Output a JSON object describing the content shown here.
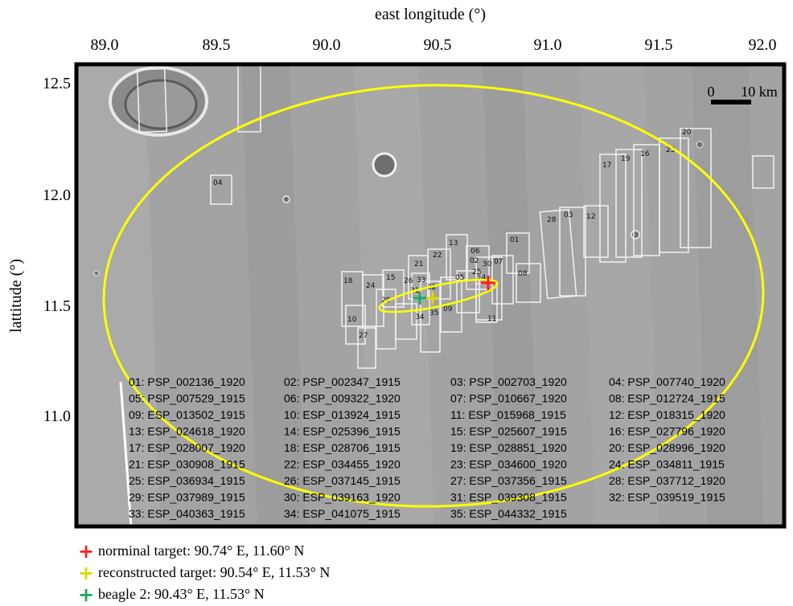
{
  "map": {
    "top_axis_label": "east longitude (°)",
    "left_axis_label": "lattitude (°)",
    "x_ticks": [
      "89.0",
      "89.5",
      "90.0",
      "90.5",
      "91.0",
      "91.5",
      "92.0"
    ],
    "y_ticks": [
      "12.5",
      "12.0",
      "11.5",
      "11.0"
    ],
    "scale_bar": {
      "zero_label": "0",
      "length_label": "10 km"
    },
    "footprint_labels": [
      "01",
      "02",
      "03",
      "04",
      "05",
      "06",
      "07",
      "08",
      "09",
      "10",
      "11",
      "12",
      "13",
      "14",
      "15",
      "16",
      "17",
      "18",
      "19",
      "20",
      "21",
      "22",
      "23",
      "24",
      "25",
      "26",
      "27",
      "28",
      "29",
      "30",
      "31",
      "32",
      "33",
      "34",
      "35"
    ],
    "image_list": [
      "01: PSP_002136_1920",
      "02: PSP_002347_1915",
      "03: PSP_002703_1920",
      "04: PSP_007740_1920",
      "05: PSP_007529_1915",
      "06: PSP_009322_1920",
      "07: PSP_010667_1920",
      "08: ESP_012724_1915",
      "09: ESP_013502_1915",
      "10: ESP_013924_1915",
      "11: ESP_015968_1915",
      "12: ESP_018315_1920",
      "13: ESP_024618_1920",
      "14: ESP_025396_1915",
      "15: ESP_025607_1915",
      "16: ESP_027796_1920",
      "17: ESP_028007_1920",
      "18: ESP_028706_1915",
      "19: ESP_028851_1920",
      "20: ESP_028996_1920",
      "21: ESP_030908_1915",
      "22: ESP_034455_1920",
      "23: ESP_034600_1920",
      "24: ESP_034811_1915",
      "25: ESP_036934_1915",
      "26: ESP_037145_1915",
      "27: ESP_037356_1915",
      "28: ESP_037712_1920",
      "29: ESP_037989_1915",
      "30: ESP_039163_1920",
      "31: ESP_039308_1915",
      "32: ESP_039519_1915",
      "33: ESP_040363_1915",
      "34: ESP_041075_1915",
      "35: ESP_044332_1915"
    ],
    "colors": {
      "ellipse": "#ffff00",
      "nominal": "#ff1a1a",
      "reconstructed": "#d9d900",
      "beagle": "#1aa860",
      "frame": "#000000"
    }
  },
  "legend": [
    {
      "key": "nominal",
      "icon": "red-cross-icon",
      "text": "norminal target: 90.74° E, 11.60° N"
    },
    {
      "key": "reconstructed",
      "icon": "yellow-cross-icon",
      "text": "reconstructed target: 90.54° E, 11.53° N"
    },
    {
      "key": "beagle",
      "icon": "green-cross-icon",
      "text": "beagle 2: 90.43° E, 11.53° N"
    }
  ]
}
